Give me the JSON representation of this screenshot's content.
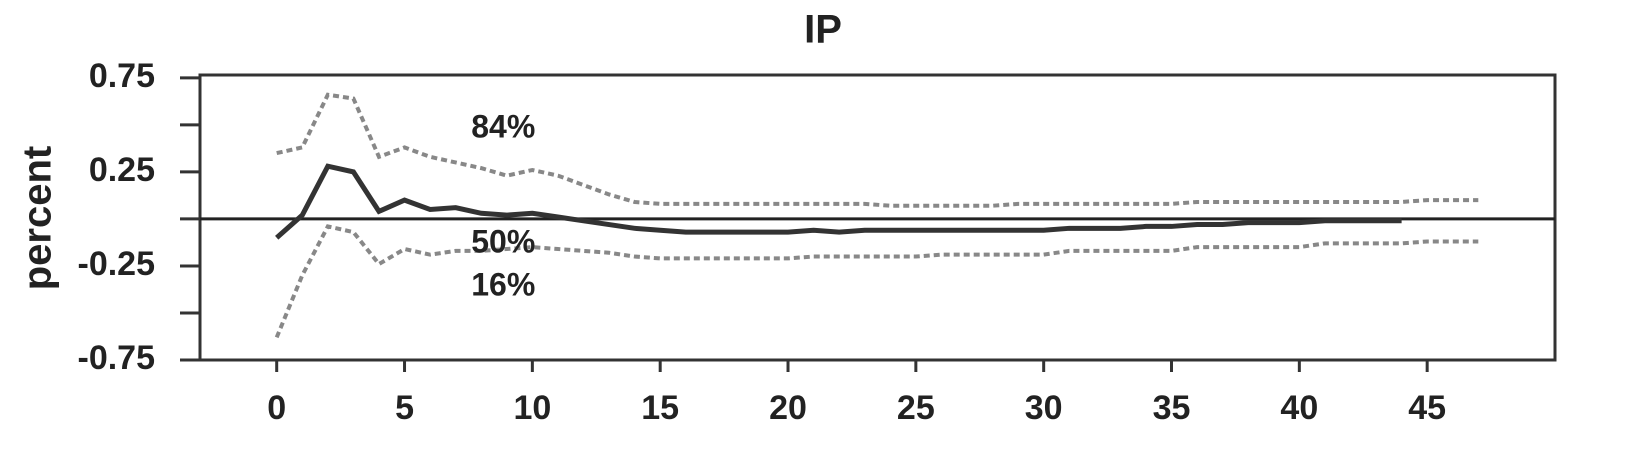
{
  "chart_data": {
    "type": "line",
    "title": "IP",
    "y_label": "percent",
    "x": [
      0,
      1,
      2,
      3,
      4,
      5,
      6,
      7,
      8,
      9,
      10,
      11,
      12,
      13,
      14,
      15,
      16,
      17,
      18,
      19,
      20,
      21,
      22,
      23,
      24,
      25,
      26,
      27,
      28,
      29,
      30,
      31,
      32,
      33,
      34,
      35,
      36,
      37,
      38,
      39,
      40,
      41,
      42,
      43,
      44,
      45,
      46,
      47
    ],
    "series": [
      {
        "name": "84%",
        "color": "#888888",
        "dash": true,
        "values": [
          0.35,
          0.38,
          0.66,
          0.64,
          0.33,
          0.38,
          0.33,
          0.3,
          0.27,
          0.23,
          0.26,
          0.23,
          0.18,
          0.13,
          0.09,
          0.08,
          0.08,
          0.08,
          0.08,
          0.08,
          0.08,
          0.08,
          0.08,
          0.08,
          0.07,
          0.07,
          0.07,
          0.07,
          0.07,
          0.08,
          0.08,
          0.08,
          0.08,
          0.08,
          0.08,
          0.08,
          0.09,
          0.09,
          0.09,
          0.09,
          0.09,
          0.09,
          0.09,
          0.09,
          0.09,
          0.1,
          0.1,
          0.1
        ]
      },
      {
        "name": "50%",
        "color": "#333333",
        "dash": false,
        "values": [
          -0.1,
          0.02,
          0.28,
          0.25,
          0.04,
          0.1,
          0.05,
          0.06,
          0.03,
          0.02,
          0.03,
          0.01,
          -0.01,
          -0.03,
          -0.05,
          -0.06,
          -0.07,
          -0.07,
          -0.07,
          -0.07,
          -0.07,
          -0.06,
          -0.07,
          -0.06,
          -0.06,
          -0.06,
          -0.06,
          -0.06,
          -0.06,
          -0.06,
          -0.06,
          -0.05,
          -0.05,
          -0.05,
          -0.04,
          -0.04,
          -0.03,
          -0.03,
          -0.02,
          -0.02,
          -0.02,
          -0.01,
          -0.01,
          -0.01,
          -0.01,
          null,
          null,
          null
        ]
      },
      {
        "name": "16%",
        "color": "#888888",
        "dash": true,
        "values": [
          -0.63,
          -0.3,
          -0.04,
          -0.07,
          -0.24,
          -0.16,
          -0.19,
          -0.17,
          -0.17,
          -0.16,
          -0.15,
          -0.16,
          -0.17,
          -0.18,
          -0.2,
          -0.21,
          -0.21,
          -0.21,
          -0.21,
          -0.21,
          -0.21,
          -0.2,
          -0.2,
          -0.2,
          -0.2,
          -0.2,
          -0.19,
          -0.19,
          -0.19,
          -0.19,
          -0.19,
          -0.17,
          -0.17,
          -0.17,
          -0.17,
          -0.17,
          -0.15,
          -0.15,
          -0.15,
          -0.15,
          -0.15,
          -0.13,
          -0.13,
          -0.13,
          -0.13,
          -0.12,
          -0.12,
          -0.12
        ]
      }
    ],
    "annotation_x": 8,
    "xlim": [
      -3,
      50
    ],
    "xticks": [
      0,
      5,
      10,
      15,
      20,
      25,
      30,
      35,
      40,
      45
    ],
    "ylim": [
      -0.75,
      0.765
    ],
    "yticks": [
      0.75,
      0.25,
      -0.25,
      -0.75
    ],
    "y_minor_ticks": [
      0.5,
      0,
      -0.5
    ],
    "zero_line": true
  }
}
